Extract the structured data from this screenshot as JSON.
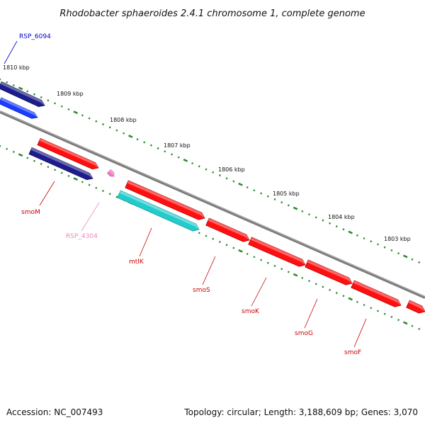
{
  "title": "Rhodobacter sphaeroides 2.4.1 chromosome 1, complete genome",
  "footer": {
    "accession": "Accession: NC_007493",
    "topology": "Topology: circular; Length: 3,188,609 bp; Genes: 3,070"
  },
  "colors": {
    "backbone": "#808080",
    "tick": "#2e8b2e",
    "gene_red": "#ff1010",
    "gene_navy": "#1c1c8c",
    "gene_blue": "#1a3dff",
    "gene_cyan": "#22cccc",
    "gene_pink": "#f080c0",
    "label_red": "#cc0000",
    "label_blue": "#0000cc",
    "label_pink": "#ee88bb"
  },
  "kbp_labels": [
    "1810 kbp",
    "1809 kbp",
    "1808 kbp",
    "1807 kbp",
    "1806 kbp",
    "1805 kbp",
    "1804 kbp",
    "1803 kbp"
  ],
  "genes": [
    {
      "name": "RSP_6094",
      "color": "blue"
    },
    {
      "name": "smoM",
      "color": "red"
    },
    {
      "name": "RSP_4304",
      "color": "pink"
    },
    {
      "name": "mtlK",
      "color": "red"
    },
    {
      "name": "smoS",
      "color": "red"
    },
    {
      "name": "smoK",
      "color": "red"
    },
    {
      "name": "smoG",
      "color": "red"
    },
    {
      "name": "smoF",
      "color": "red"
    }
  ]
}
